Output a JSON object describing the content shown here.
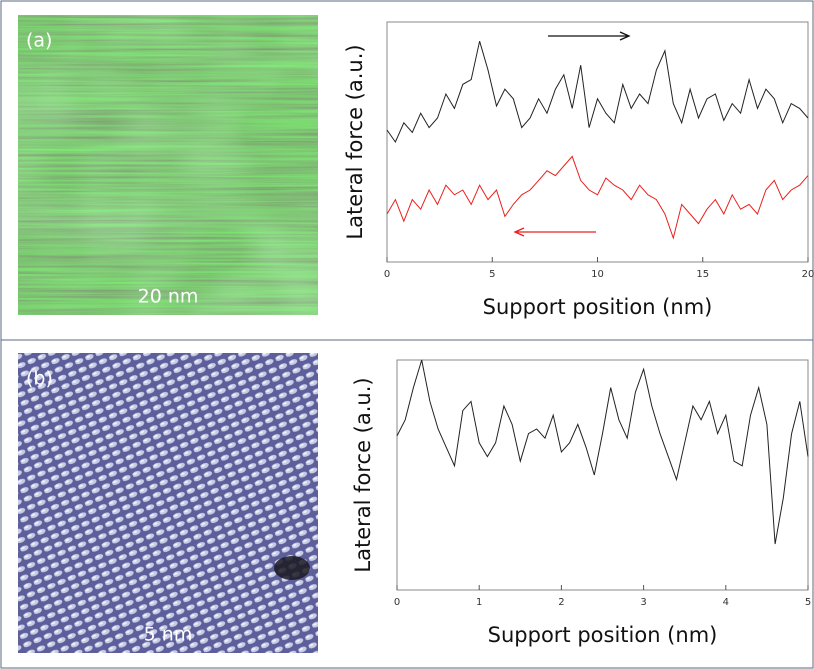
{
  "chart_data": [
    {
      "type": "line",
      "panel_label": "(a)",
      "scale_bar": "20 nm",
      "x_label": "Support position (nm)",
      "y_label": "Lateral force (a.u.)",
      "xlim": [
        0,
        20
      ],
      "ylim": [
        0,
        10
      ],
      "xticks": [
        0,
        5,
        10,
        15,
        20
      ],
      "x": [
        0,
        0.4,
        0.8,
        1.2,
        1.6,
        2,
        2.4,
        2.8,
        3.2,
        3.6,
        4,
        4.4,
        4.8,
        5.2,
        5.6,
        6,
        6.4,
        6.8,
        7.2,
        7.6,
        8,
        8.4,
        8.8,
        9.2,
        9.6,
        10,
        10.4,
        10.8,
        11.2,
        11.6,
        12,
        12.4,
        12.8,
        13.2,
        13.6,
        14,
        14.4,
        14.8,
        15.2,
        15.6,
        16,
        16.4,
        16.8,
        17.2,
        17.6,
        18,
        18.4,
        18.8,
        19.2,
        19.6,
        20
      ],
      "series": [
        {
          "color": "#222222",
          "values": [
            5.5,
            5.0,
            5.8,
            5.4,
            6.2,
            5.6,
            6.0,
            7.0,
            6.4,
            7.4,
            7.6,
            9.2,
            8.0,
            6.5,
            7.2,
            6.8,
            5.6,
            6.0,
            6.8,
            6.2,
            7.2,
            7.8,
            6.4,
            8.2,
            5.6,
            6.8,
            6.2,
            5.8,
            7.4,
            6.4,
            7.0,
            6.6,
            8.0,
            8.8,
            6.6,
            5.8,
            7.2,
            6.0,
            6.8,
            7.0,
            5.9,
            6.6,
            6.2,
            7.6,
            6.4,
            7.2,
            6.8,
            5.8,
            6.6,
            6.4,
            6.0
          ]
        },
        {
          "color": "#e8211d",
          "values": [
            2.0,
            2.6,
            1.7,
            2.6,
            2.2,
            3.0,
            2.4,
            3.2,
            2.8,
            3.0,
            2.4,
            3.2,
            2.6,
            3.0,
            1.9,
            2.4,
            2.8,
            3.0,
            3.4,
            3.8,
            3.6,
            4.0,
            4.4,
            3.4,
            3.0,
            2.8,
            3.5,
            3.2,
            3.0,
            2.6,
            3.2,
            2.8,
            2.6,
            2.0,
            1.0,
            2.4,
            2.0,
            1.6,
            2.2,
            2.6,
            2.0,
            2.8,
            2.2,
            2.4,
            2.0,
            3.0,
            3.4,
            2.6,
            3.0,
            3.2,
            3.6
          ]
        }
      ]
    },
    {
      "type": "line",
      "panel_label": "(b)",
      "scale_bar": "5 nm",
      "x_label": "Support position (nm)",
      "y_label": "Lateral force (a.u.)",
      "xlim": [
        0,
        5
      ],
      "ylim": [
        0,
        10
      ],
      "xticks": [
        0,
        1,
        2,
        3,
        4,
        5
      ],
      "x": [
        0,
        0.1,
        0.2,
        0.3,
        0.4,
        0.5,
        0.6,
        0.7,
        0.8,
        0.9,
        1,
        1.1,
        1.2,
        1.3,
        1.4,
        1.5,
        1.6,
        1.7,
        1.8,
        1.9,
        2,
        2.1,
        2.2,
        2.3,
        2.4,
        2.5,
        2.6,
        2.7,
        2.8,
        2.9,
        3,
        3.1,
        3.2,
        3.3,
        3.4,
        3.5,
        3.6,
        3.7,
        3.8,
        3.9,
        4,
        4.1,
        4.2,
        4.3,
        4.4,
        4.5,
        4.6,
        4.7,
        4.8,
        4.9,
        5
      ],
      "series": [
        {
          "color": "#222222",
          "values": [
            6.7,
            7.4,
            8.8,
            10.0,
            8.2,
            7.0,
            6.2,
            5.4,
            7.8,
            8.2,
            6.4,
            5.8,
            6.4,
            8.0,
            7.2,
            5.6,
            6.8,
            7.0,
            6.6,
            7.6,
            6.0,
            6.4,
            7.2,
            6.2,
            5.0,
            6.8,
            8.8,
            7.4,
            6.6,
            8.6,
            9.6,
            8.0,
            6.8,
            5.8,
            4.8,
            6.4,
            8.0,
            7.4,
            8.2,
            6.8,
            7.6,
            5.6,
            5.4,
            7.6,
            8.8,
            7.2,
            2.0,
            4.0,
            6.8,
            8.2,
            5.8
          ]
        }
      ]
    }
  ]
}
